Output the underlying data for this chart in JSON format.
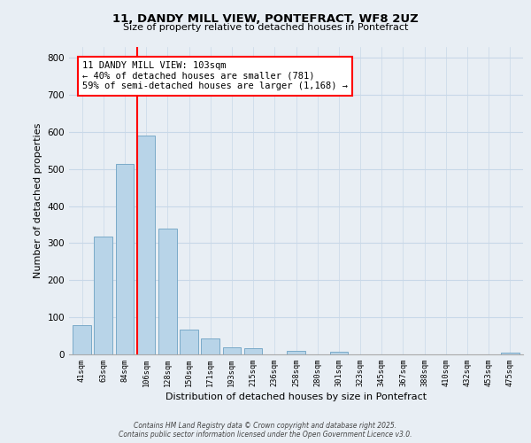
{
  "title_line1": "11, DANDY MILL VIEW, PONTEFRACT, WF8 2UZ",
  "title_line2": "Size of property relative to detached houses in Pontefract",
  "xlabel": "Distribution of detached houses by size in Pontefract",
  "ylabel": "Number of detached properties",
  "categories": [
    "41sqm",
    "63sqm",
    "84sqm",
    "106sqm",
    "128sqm",
    "150sqm",
    "171sqm",
    "193sqm",
    "215sqm",
    "236sqm",
    "258sqm",
    "280sqm",
    "301sqm",
    "323sqm",
    "345sqm",
    "367sqm",
    "388sqm",
    "410sqm",
    "432sqm",
    "453sqm",
    "475sqm"
  ],
  "values": [
    78,
    318,
    513,
    590,
    340,
    68,
    42,
    19,
    17,
    0,
    10,
    0,
    6,
    0,
    0,
    0,
    0,
    0,
    0,
    0,
    5
  ],
  "bar_color": "#b8d4e8",
  "bar_edge_color": "#7aaac8",
  "vline_color": "red",
  "annotation_text": "11 DANDY MILL VIEW: 103sqm\n← 40% of detached houses are smaller (781)\n59% of semi-detached houses are larger (1,168) →",
  "annotation_box_color": "white",
  "annotation_box_edge_color": "red",
  "ylim": [
    0,
    830
  ],
  "yticks": [
    0,
    100,
    200,
    300,
    400,
    500,
    600,
    700,
    800
  ],
  "footer_line1": "Contains HM Land Registry data © Crown copyright and database right 2025.",
  "footer_line2": "Contains public sector information licensed under the Open Government Licence v3.0.",
  "bg_color": "#e8eef4",
  "grid_color": "#c8d8e8"
}
